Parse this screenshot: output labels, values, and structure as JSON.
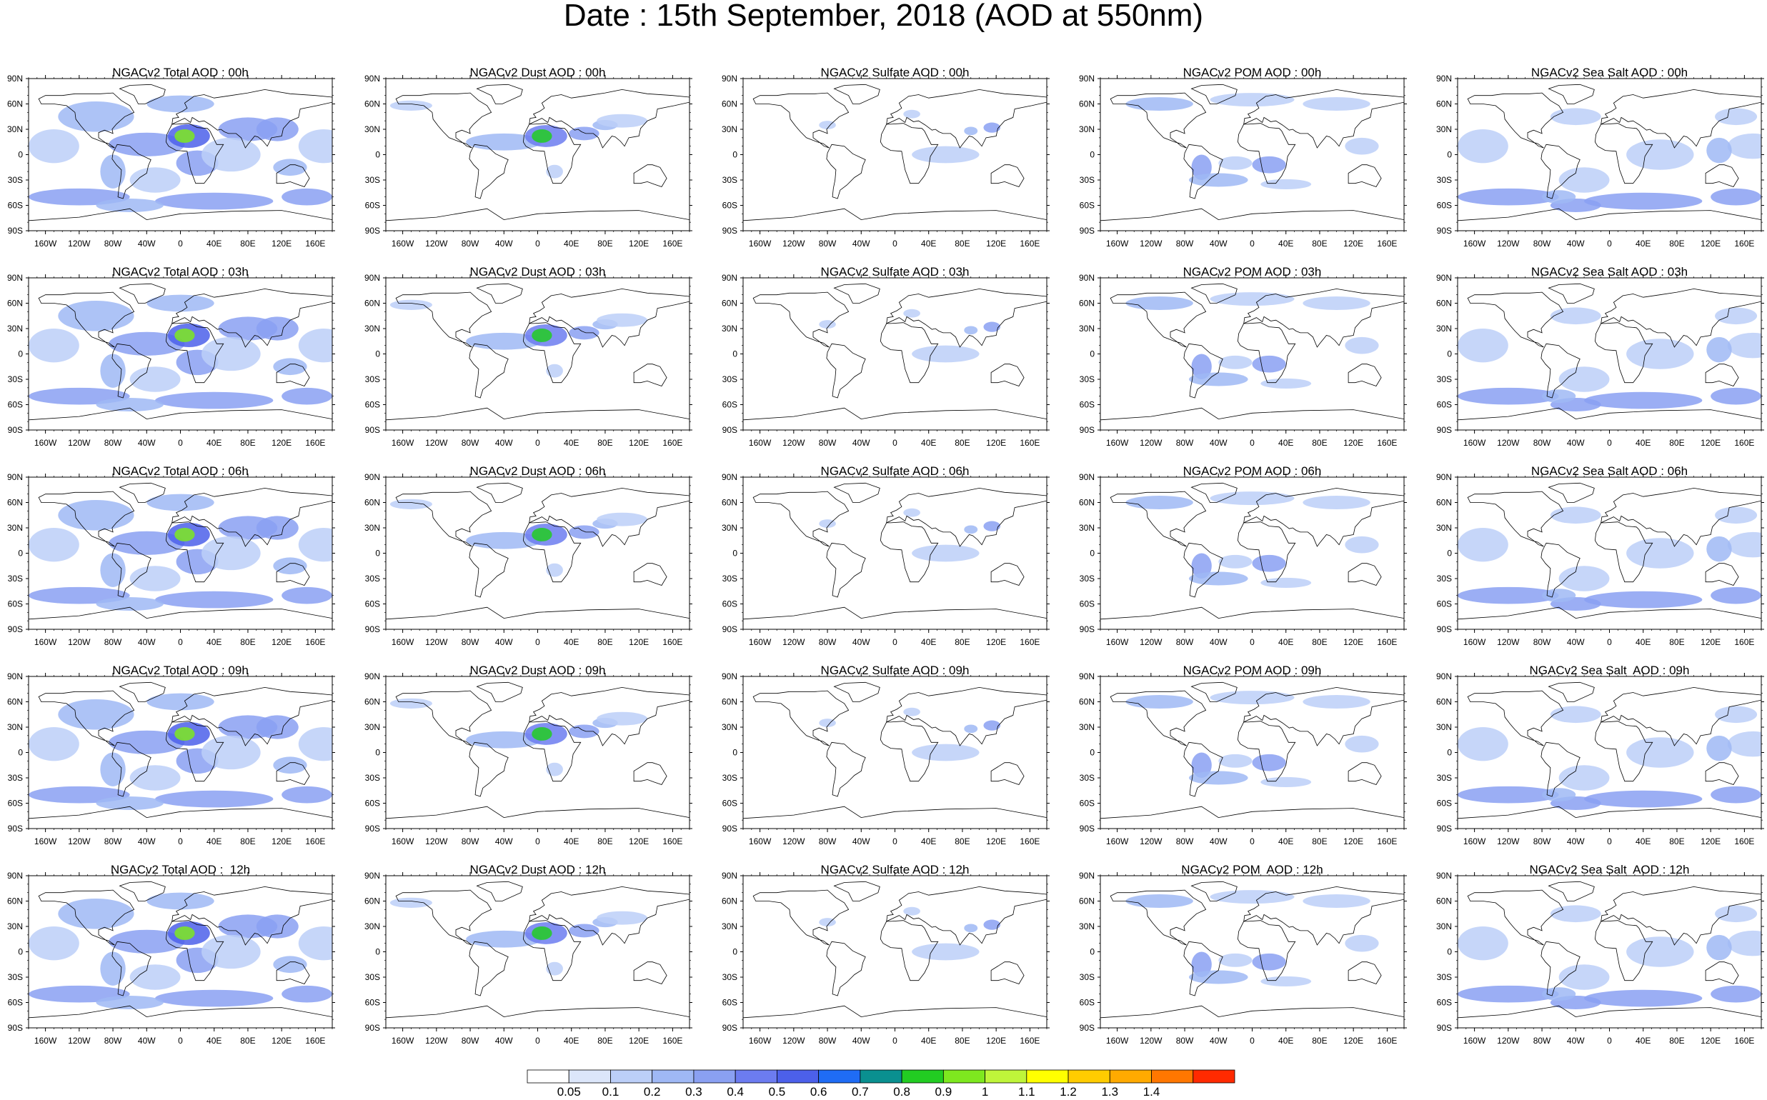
{
  "title": "Date : 15th September, 2018 (AOD at 550nm)",
  "lat_labels": [
    "90N",
    "60N",
    "30N",
    "0",
    "30S",
    "60S",
    "90S"
  ],
  "lon_labels": [
    "160W",
    "120W",
    "80W",
    "40W",
    "0",
    "40E",
    "80E",
    "120E",
    "160E"
  ],
  "panels": [
    [
      {
        "title": "NGACv2 Total AOD : 00h",
        "species": "total"
      },
      {
        "title": "NGACv2 Dust AOD : 00h",
        "species": "dust"
      },
      {
        "title": "NGACv2 Sulfate AOD : 00h",
        "species": "sulfate"
      },
      {
        "title": "NGACv2 POM AOD : 00h",
        "species": "pom"
      },
      {
        "title": "NGACv2 Sea Salt AOD : 00h",
        "species": "seasalt"
      }
    ],
    [
      {
        "title": "NGACv2 Total AOD : 03h",
        "species": "total"
      },
      {
        "title": "NGACv2 Dust AOD : 03h",
        "species": "dust"
      },
      {
        "title": "NGACv2 Sulfate AOD : 03h",
        "species": "sulfate"
      },
      {
        "title": "NGACv2 POM AOD : 03h",
        "species": "pom"
      },
      {
        "title": "NGACv2 Sea Salt AOD : 03h",
        "species": "seasalt"
      }
    ],
    [
      {
        "title": "NGACv2 Total AOD : 06h",
        "species": "total"
      },
      {
        "title": "NGACv2 Dust AOD : 06h",
        "species": "dust"
      },
      {
        "title": "NGACv2 Sulfate AOD : 06h",
        "species": "sulfate"
      },
      {
        "title": "NGACv2 POM AOD : 06h",
        "species": "pom"
      },
      {
        "title": "NGACv2 Sea Salt AOD : 06h",
        "species": "seasalt"
      }
    ],
    [
      {
        "title": "NGACv2 Total AOD : 09h",
        "species": "total"
      },
      {
        "title": "NGACv2 Dust AOD : 09h",
        "species": "dust"
      },
      {
        "title": "NGACv2 Sulfate AOD : 09h",
        "species": "sulfate"
      },
      {
        "title": "NGACv2 POM AOD : 09h",
        "species": "pom"
      },
      {
        "title": "NGACv2 Sea Salt  AOD : 09h",
        "species": "seasalt"
      }
    ],
    [
      {
        "title": "NGACv2 Total AOD :  12h",
        "species": "total"
      },
      {
        "title": "NGACv2 Dust AOD : 12h",
        "species": "dust"
      },
      {
        "title": "NGACv2 Sulfate AOD : 12h",
        "species": "sulfate"
      },
      {
        "title": "NGACv2 POM  AOD : 12h",
        "species": "pom"
      },
      {
        "title": "NGACv2 Sea Salt  AOD : 12h",
        "species": "seasalt"
      }
    ]
  ],
  "colorbar": {
    "labels": [
      "0.05",
      "0.1",
      "0.2",
      "0.3",
      "0.4",
      "0.5",
      "0.6",
      "0.7",
      "0.8",
      "0.9",
      "1",
      "1.1",
      "1.2",
      "1.3",
      "1.4"
    ],
    "colors": [
      "#ffffff",
      "#dce6fa",
      "#bccff8",
      "#9fb8f5",
      "#8aa0f2",
      "#6c7cf0",
      "#4c60ea",
      "#1f6cf5",
      "#0a9090",
      "#22cc22",
      "#7ee81f",
      "#bff53a",
      "#ffff00",
      "#ffcc00",
      "#ffaa00",
      "#ff7700",
      "#ff2a00"
    ]
  }
}
